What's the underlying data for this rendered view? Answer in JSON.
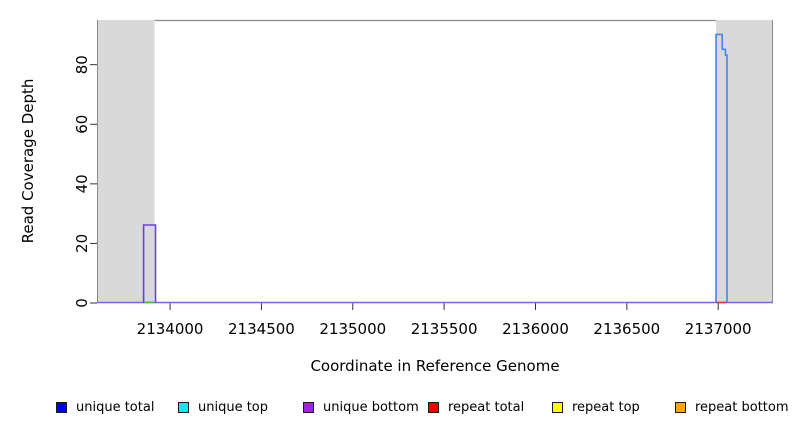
{
  "chart_data": {
    "type": "line",
    "title": "",
    "xlabel": "Coordinate in Reference Genome",
    "ylabel": "Read Coverage Depth",
    "xlim": [
      2133600,
      2137300
    ],
    "ylim": [
      0,
      95
    ],
    "x_ticks": [
      2134000,
      2134500,
      2135000,
      2135500,
      2136000,
      2136500,
      2137000
    ],
    "y_ticks": [
      0,
      20,
      40,
      60,
      80
    ],
    "grid": false,
    "plot_background": "#ffffff",
    "border_color": "#8a8a8a",
    "tick_color": "#333333",
    "shaded_regions": [
      {
        "name": "masked-left",
        "x0": 2133600,
        "x1": 2133915,
        "color": "#d9d9d9"
      },
      {
        "name": "masked-right",
        "x0": 2136988,
        "x1": 2137300,
        "color": "#d9d9d9"
      }
    ],
    "baseline": {
      "y": 0,
      "color": "#7e62ee"
    },
    "baseline_overlaps": [
      {
        "name": "left-peak-base",
        "x0": 2133855,
        "x1": 2133920,
        "y": 0,
        "color": "#3fbf3f"
      },
      {
        "name": "right-peak-base",
        "x0": 2136988,
        "x1": 2137048,
        "y": 0,
        "color": "#e83030"
      }
    ],
    "series": [
      {
        "name": "unique-bottom-peak",
        "color": "#653fe4",
        "points": [
          [
            2133855,
            0
          ],
          [
            2133855,
            26
          ],
          [
            2133920,
            26
          ],
          [
            2133920,
            0
          ]
        ]
      },
      {
        "name": "unique-total-peak",
        "color": "#4285f4",
        "points": [
          [
            2136988,
            0
          ],
          [
            2136988,
            90
          ],
          [
            2137022,
            90
          ],
          [
            2137022,
            85
          ],
          [
            2137040,
            85
          ],
          [
            2137040,
            83
          ],
          [
            2137048,
            83
          ],
          [
            2137048,
            0
          ]
        ]
      }
    ],
    "legend": {
      "position": "bottom",
      "entries": [
        {
          "label": "unique total",
          "color": "#0000ee"
        },
        {
          "label": "unique top",
          "color": "#00eeee"
        },
        {
          "label": "unique bottom",
          "color": "#a020f0"
        },
        {
          "label": "repeat total",
          "color": "#ee0000"
        },
        {
          "label": "repeat top",
          "color": "#ffff00"
        },
        {
          "label": "repeat bottom",
          "color": "#ffa500"
        }
      ]
    }
  }
}
